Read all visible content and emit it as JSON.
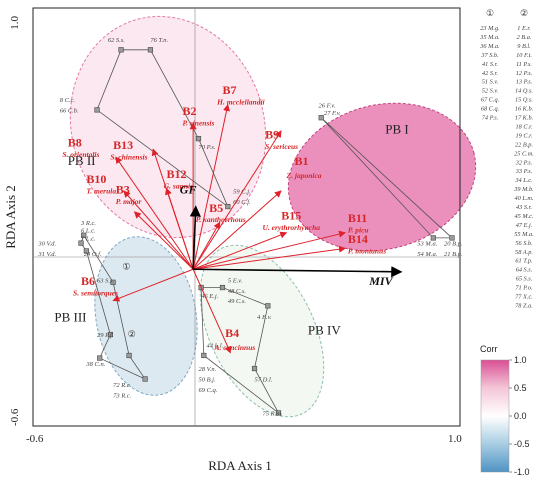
{
  "chart_data": {
    "type": "scatter",
    "xlabel": "RDA Axis 1",
    "ylabel": "RDA Axis 2",
    "xlim": [
      -0.6,
      1.0
    ],
    "ylim": [
      -0.6,
      1.0
    ],
    "x_ticks": [
      "-0.6",
      "1.0"
    ],
    "y_ticks": [
      "1.0",
      "-0.6"
    ],
    "groups": [
      {
        "name": "PB I",
        "color": "#d94f93",
        "label_at": [
          0.72,
          0.52
        ]
      },
      {
        "name": "PB II",
        "color": "#f4c6d8",
        "label_at": [
          -0.47,
          0.4
        ]
      },
      {
        "name": "PB III",
        "color": "#a8c8da",
        "label_at": [
          -0.52,
          -0.2
        ]
      },
      {
        "name": "PB IV",
        "color": "#d7e7d3",
        "label_at": [
          0.43,
          -0.25
        ]
      }
    ],
    "sites": [
      {
        "id": "62",
        "label": "62 S.s.",
        "x": -0.27,
        "y": 0.84,
        "lx": -0.32,
        "ly": 0.87
      },
      {
        "id": "76",
        "label": "76 T.n.",
        "x": -0.16,
        "y": 0.84,
        "lx": -0.16,
        "ly": 0.87
      },
      {
        "id": "8",
        "label": "8 C.c.",
        "x": -0.36,
        "y": 0.61,
        "lx": -0.5,
        "ly": 0.64
      },
      {
        "id": "66",
        "label": "66 C.b.",
        "x": -0.36,
        "y": 0.61,
        "lx": -0.5,
        "ly": 0.6
      },
      {
        "id": "70",
        "label": "70 P.s.",
        "x": 0.02,
        "y": 0.5,
        "lx": 0.02,
        "ly": 0.46
      },
      {
        "id": "59",
        "label": "59 C.j.",
        "x": 0.13,
        "y": 0.24,
        "lx": 0.15,
        "ly": 0.29
      },
      {
        "id": "60",
        "label": "60 C.f.",
        "x": 0.13,
        "y": 0.24,
        "lx": 0.15,
        "ly": 0.25
      },
      {
        "id": "26",
        "label": "26 F.v.",
        "x": 0.48,
        "y": 0.58,
        "lx": 0.47,
        "ly": 0.62
      },
      {
        "id": "27",
        "label": "27 F.v.",
        "x": 0.48,
        "y": 0.58,
        "lx": 0.49,
        "ly": 0.59
      },
      {
        "id": "53",
        "label": "53 M.a.",
        "x": 0.9,
        "y": 0.12,
        "lx": 0.84,
        "ly": 0.09
      },
      {
        "id": "54",
        "label": "54 M.a.",
        "x": 0.9,
        "y": 0.12,
        "lx": 0.84,
        "ly": 0.05
      },
      {
        "id": "20",
        "label": "20 B.p.",
        "x": 0.97,
        "y": 0.12,
        "lx": 0.94,
        "ly": 0.09
      },
      {
        "id": "21",
        "label": "21 B.p.",
        "x": 0.97,
        "y": 0.12,
        "lx": 0.94,
        "ly": 0.05
      },
      {
        "id": "30",
        "label": "30 V.d.",
        "x": -0.42,
        "y": 0.1,
        "lx": -0.58,
        "ly": 0.09
      },
      {
        "id": "31",
        "label": "31 V.d.",
        "x": -0.42,
        "y": 0.1,
        "lx": -0.58,
        "ly": 0.05
      },
      {
        "id": "3",
        "label": "3 R.c.",
        "x": -0.41,
        "y": 0.13,
        "lx": -0.42,
        "ly": 0.17
      },
      {
        "id": "6",
        "label": "6 L.c.",
        "x": -0.41,
        "y": 0.13,
        "lx": -0.42,
        "ly": 0.14
      },
      {
        "id": "7",
        "label": "7 L.c.",
        "x": -0.41,
        "y": 0.13,
        "lx": -0.42,
        "ly": 0.11
      },
      {
        "id": "24",
        "label": "24 O.f.",
        "x": -0.4,
        "y": 0.07,
        "lx": -0.41,
        "ly": 0.05
      },
      {
        "id": "63",
        "label": "63 S.s.",
        "x": -0.3,
        "y": -0.05,
        "lx": -0.36,
        "ly": -0.05
      },
      {
        "id": "29",
        "label": "29 P.f.",
        "x": -0.31,
        "y": -0.25,
        "lx": -0.36,
        "ly": -0.26
      },
      {
        "id": "38",
        "label": "38 C.n.",
        "x": -0.35,
        "y": -0.34,
        "lx": -0.4,
        "ly": -0.37
      },
      {
        "id": "72",
        "label": "72 R.c.",
        "x": -0.18,
        "y": -0.42,
        "lx": -0.3,
        "ly": -0.45
      },
      {
        "id": "73",
        "label": "73 R.c.",
        "x": -0.18,
        "y": -0.42,
        "lx": -0.3,
        "ly": -0.49
      },
      {
        "id": "46",
        "label": "46 E.j.",
        "x": 0.03,
        "y": -0.07,
        "lx": 0.03,
        "ly": -0.11
      },
      {
        "id": "5",
        "label": "5 E.v.",
        "x": 0.11,
        "y": -0.07,
        "lx": 0.13,
        "ly": -0.05
      },
      {
        "id": "48",
        "label": "48 C.s.",
        "x": 0.11,
        "y": -0.07,
        "lx": 0.13,
        "ly": -0.09
      },
      {
        "id": "49",
        "label": "49 C.s.",
        "x": 0.11,
        "y": -0.07,
        "lx": 0.13,
        "ly": -0.13
      },
      {
        "id": "4",
        "label": "4 E.v.",
        "x": 0.28,
        "y": -0.14,
        "lx": 0.24,
        "ly": -0.19
      },
      {
        "id": "44",
        "label": "44 L.l.",
        "x": 0.04,
        "y": -0.33,
        "lx": 0.05,
        "ly": -0.3
      },
      {
        "id": "28",
        "label": "28 V.n.",
        "x": 0.04,
        "y": -0.33,
        "lx": 0.02,
        "ly": -0.39
      },
      {
        "id": "50",
        "label": "50 B.j.",
        "x": 0.04,
        "y": -0.33,
        "lx": 0.02,
        "ly": -0.43
      },
      {
        "id": "69",
        "label": "69 C.q.",
        "x": 0.04,
        "y": -0.33,
        "lx": 0.02,
        "ly": -0.47
      },
      {
        "id": "57",
        "label": "57 D.l.",
        "x": 0.23,
        "y": -0.38,
        "lx": 0.23,
        "ly": -0.43
      },
      {
        "id": "75",
        "label": "75 R.m.",
        "x": 0.32,
        "y": -0.55,
        "lx": 0.26,
        "ly": -0.56
      }
    ],
    "site_markers": [
      {
        "x": -0.27,
        "y": 0.84
      },
      {
        "x": -0.16,
        "y": 0.84
      },
      {
        "x": -0.36,
        "y": 0.61
      },
      {
        "x": 0.02,
        "y": 0.5
      },
      {
        "x": 0.13,
        "y": 0.24
      },
      {
        "x": 0.48,
        "y": 0.58
      },
      {
        "x": 0.9,
        "y": 0.12
      },
      {
        "x": 0.97,
        "y": 0.12
      },
      {
        "x": -0.42,
        "y": 0.1
      },
      {
        "x": -0.41,
        "y": 0.13
      },
      {
        "x": -0.4,
        "y": 0.07
      },
      {
        "x": -0.3,
        "y": -0.05
      },
      {
        "x": -0.31,
        "y": -0.25
      },
      {
        "x": -0.35,
        "y": -0.34
      },
      {
        "x": -0.18,
        "y": -0.42
      },
      {
        "x": -0.24,
        "y": -0.33
      },
      {
        "x": 0.03,
        "y": -0.07
      },
      {
        "x": 0.11,
        "y": -0.07
      },
      {
        "x": 0.28,
        "y": -0.14
      },
      {
        "x": 0.04,
        "y": -0.33
      },
      {
        "x": 0.23,
        "y": -0.38
      },
      {
        "x": 0.32,
        "y": -0.55
      }
    ],
    "hulls": [
      {
        "group": "PB I",
        "points": [
          [
            0.48,
            0.58
          ],
          [
            0.97,
            0.12
          ],
          [
            0.9,
            0.12
          ],
          [
            0.48,
            0.58
          ]
        ]
      },
      {
        "group": "PB II",
        "points": [
          [
            -0.27,
            0.84
          ],
          [
            -0.16,
            0.84
          ],
          [
            0.02,
            0.5
          ],
          [
            0.13,
            0.24
          ],
          [
            -0.36,
            0.61
          ],
          [
            -0.27,
            0.84
          ]
        ]
      },
      {
        "group": "PB III",
        "points": [
          [
            -0.42,
            0.1
          ],
          [
            -0.41,
            0.13
          ],
          [
            -0.3,
            -0.05
          ],
          [
            -0.24,
            -0.33
          ],
          [
            -0.18,
            -0.42
          ],
          [
            -0.35,
            -0.34
          ],
          [
            -0.31,
            -0.25
          ],
          [
            -0.4,
            0.07
          ],
          [
            -0.42,
            0.1
          ]
        ]
      },
      {
        "group": "PB IV",
        "points": [
          [
            0.03,
            -0.07
          ],
          [
            0.11,
            -0.07
          ],
          [
            0.28,
            -0.14
          ],
          [
            0.23,
            -0.38
          ],
          [
            0.32,
            -0.55
          ],
          [
            0.04,
            -0.33
          ],
          [
            0.03,
            -0.07
          ]
        ]
      }
    ],
    "callouts": [
      {
        "text": "①",
        "x": -0.25,
        "y": 0.0
      },
      {
        "text": "②",
        "x": -0.23,
        "y": -0.26
      }
    ],
    "species": [
      {
        "code": "B1",
        "name": "Z. japonica",
        "x": 0.33,
        "y": 0.3,
        "lx": 0.38,
        "ly": 0.4,
        "nx": 0.35,
        "ny": 0.35
      },
      {
        "code": "B2",
        "name": "P. sinensis",
        "x": 0.0,
        "y": 0.56,
        "lx": -0.04,
        "ly": 0.59,
        "nx": -0.04,
        "ny": 0.55
      },
      {
        "code": "B3",
        "name": "P. major",
        "x": -0.22,
        "y": 0.22,
        "lx": -0.29,
        "ly": 0.29,
        "nx": -0.29,
        "ny": 0.25
      },
      {
        "code": "B4",
        "name": "A. concinnus",
        "x": 0.14,
        "y": -0.32,
        "lx": 0.12,
        "ly": -0.26,
        "nx": 0.08,
        "ny": -0.31
      },
      {
        "code": "B5",
        "name": "P. xanthorrhous",
        "x": 0.1,
        "y": 0.18,
        "lx": 0.06,
        "ly": 0.22,
        "nx": 0.01,
        "ny": 0.18
      },
      {
        "code": "B6",
        "name": "S. semitorques",
        "x": -0.3,
        "y": -0.12,
        "lx": -0.42,
        "ly": -0.06,
        "nx": -0.45,
        "ny": -0.1
      },
      {
        "code": "B7",
        "name": "H. mcclellandii",
        "x": 0.13,
        "y": 0.63,
        "lx": 0.11,
        "ly": 0.67,
        "nx": 0.09,
        "ny": 0.63
      },
      {
        "code": "B8",
        "name": "S. orientalis",
        "x": -0.29,
        "y": 0.43,
        "lx": -0.47,
        "ly": 0.47,
        "nx": -0.49,
        "ny": 0.43
      },
      {
        "code": "B9",
        "name": "S. sericeus",
        "x": 0.33,
        "y": 0.53,
        "lx": 0.27,
        "ly": 0.5,
        "nx": 0.27,
        "ny": 0.46
      },
      {
        "code": "B10",
        "name": "T. merula",
        "x": -0.26,
        "y": 0.3,
        "lx": -0.4,
        "ly": 0.33,
        "nx": -0.4,
        "ny": 0.29
      },
      {
        "code": "B11",
        "name": "P. picu",
        "x": 0.57,
        "y": 0.14,
        "lx": 0.58,
        "ly": 0.18,
        "nx": 0.58,
        "ny": 0.14
      },
      {
        "code": "B12",
        "name": "G. sannio",
        "x": -0.1,
        "y": 0.31,
        "lx": -0.1,
        "ly": 0.35,
        "nx": -0.11,
        "ny": 0.31
      },
      {
        "code": "B13",
        "name": "S. chinensis",
        "x": -0.15,
        "y": 0.46,
        "lx": -0.3,
        "ly": 0.46,
        "nx": -0.31,
        "ny": 0.42
      },
      {
        "code": "B14",
        "name": "P. montanus",
        "x": 0.57,
        "y": 0.08,
        "lx": 0.58,
        "ly": 0.1,
        "nx": 0.58,
        "ny": 0.06
      },
      {
        "code": "B15",
        "name": "U. erythrorhyncha",
        "x": 0.35,
        "y": 0.14,
        "lx": 0.33,
        "ly": 0.19,
        "nx": 0.26,
        "ny": 0.15
      }
    ],
    "env": [
      {
        "name": "GF",
        "x": 0.01,
        "y": 0.24,
        "lx": -0.05,
        "ly": 0.29
      },
      {
        "name": "MIV",
        "x": 0.78,
        "y": -0.01,
        "lx": 0.66,
        "ly": -0.06
      }
    ],
    "colorbar": {
      "title": "Corr",
      "ticks": [
        "1.0",
        "0.5",
        "0.0",
        "-0.5",
        "-1.0"
      ],
      "stops": [
        "#d94f93",
        "#f4c6d8",
        "#ffffff",
        "#a8cde3",
        "#4f93c4"
      ]
    }
  },
  "sidebar": {
    "col1": {
      "head": "①",
      "items": [
        "23 M.g.",
        "35 M.a.",
        "36 M.a.",
        "37 S.b.",
        "41 S.r.",
        "42 S.r.",
        "51 S.v.",
        "52 S.v.",
        "67 C.q.",
        "68 C.q.",
        "74 P.s."
      ]
    },
    "col2": {
      "head": "②",
      "items": [
        "1 E.r.",
        "2 B.a.",
        "9 B.l.",
        "10 F.t.",
        "11 P.s.",
        "12 P.s.",
        "13 P.s.",
        "14 Q.s.",
        "15 Q.s.",
        "16 K.b.",
        "17 K.b.",
        "18 C.r.",
        "19 C.r.",
        "22 B.p.",
        "25 C.m.",
        "32 P.s.",
        "33 P.s.",
        "34 L.c.",
        "39 M.b.",
        "40 L.m.",
        "43 S.r.",
        "45 M.c.",
        "47 E.j.",
        "55 M.a.",
        "56 S.b.",
        "58 A.p.",
        "61 T.p.",
        "64 S.s.",
        "65 S.s.",
        "71 P.o.",
        "77 X.c.",
        "78 Z.a."
      ]
    }
  }
}
